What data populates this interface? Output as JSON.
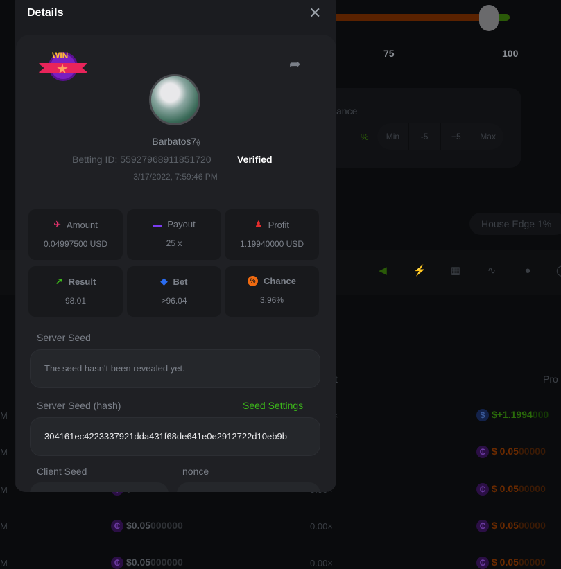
{
  "background": {
    "slider_labels": [
      "75",
      "100"
    ],
    "panel_label": "ance",
    "buttons": [
      "%",
      "Min",
      "-5",
      "+5",
      "Max"
    ],
    "house_edge": "House Edge 1%",
    "toolbar_icons": [
      "speaker-icon",
      "lightning-icon",
      "keyboard-icon",
      "chart-curve-icon",
      "acorn-icon",
      "more-icon"
    ],
    "table_headers": [
      "t",
      "Pro"
    ],
    "rows": [
      {
        "time": "M",
        "amount": "",
        "multiplier": "×",
        "profit_main": "$+1.1994",
        "profit_dim": "000",
        "win": true
      },
      {
        "time": "M",
        "amount": "",
        "multiplier": "",
        "profit_main": "$  0.05",
        "profit_dim": "00000",
        "win": false
      },
      {
        "time": "M",
        "amount_main": "$0.05",
        "amount_dim": "000000",
        "multiplier": "0.00×",
        "profit_main": "$  0.05",
        "profit_dim": "00000",
        "win": false
      },
      {
        "time": "M",
        "amount_main": "$0.05",
        "amount_dim": "000000",
        "multiplier": "0.00×",
        "profit_main": "$  0.05",
        "profit_dim": "00000",
        "win": false
      },
      {
        "time": "M",
        "amount_main": "$0.05",
        "amount_dim": "000000",
        "multiplier": "0.00×",
        "profit_main": "$  0.05",
        "profit_dim": "00000",
        "win": false
      }
    ],
    "colors": {
      "slider_lose": "#5a2200",
      "slider_win": "#2a5a08"
    }
  },
  "modal": {
    "title": "Details",
    "badge": "WIN",
    "username": "Barbatos7",
    "betting_id": "Betting ID: 55927968911851720",
    "verified": "Verified",
    "timestamp": "3/17/2022, 7:59:46 PM",
    "stats": [
      {
        "label": "Amount",
        "value": "0.04997500 USD",
        "icon": "amount-icon",
        "color": "#e8336e"
      },
      {
        "label": "Payout",
        "value": "25 x",
        "icon": "card-icon",
        "color": "#7b3cf0"
      },
      {
        "label": "Profit",
        "value": "1.19940000 USD",
        "icon": "profit-hand-icon",
        "color": "#e52d2d"
      },
      {
        "label": "Result",
        "value": "98.01",
        "icon": "result-chart-icon",
        "color": "#3cb81a"
      },
      {
        "label": "Bet",
        "value": ">96.04",
        "icon": "bet-tag-icon",
        "color": "#2a6cf0"
      },
      {
        "label": "Chance",
        "value": "3.96%",
        "icon": "percent-icon",
        "color": "#f06a10"
      }
    ],
    "server_seed_label": "Server Seed",
    "server_seed_value": "The seed hasn't been revealed yet.",
    "server_hash_label": "Server Seed (hash)",
    "seed_settings": "Seed Settings",
    "server_hash_value": "304161ec4223337921dda431f68de641e0e2912722d10eb9b",
    "client_seed_label": "Client Seed",
    "nonce_label": "nonce",
    "accent": "#3cb81a"
  }
}
